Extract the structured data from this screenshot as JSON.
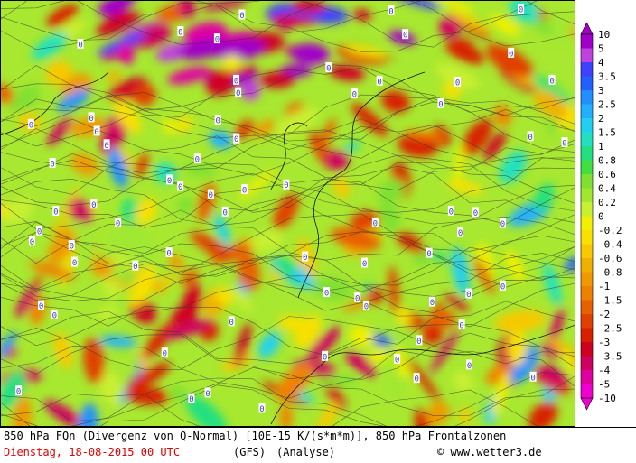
{
  "map": {
    "contour_label": "0"
  },
  "legend": {
    "labels": [
      "10",
      "5",
      "4",
      "3.5",
      "3",
      "2.5",
      "2",
      "1.5",
      "1",
      "0.8",
      "0.6",
      "0.4",
      "0.2",
      "0",
      "-0.2",
      "-0.4",
      "-0.6",
      "-0.8",
      "-1",
      "-1.5",
      "-2",
      "-2.5",
      "-3",
      "-3.5",
      "-4",
      "-5",
      "-10"
    ],
    "colors": [
      "#a000c8",
      "#c040e0",
      "#4040ff",
      "#2060ff",
      "#2090ff",
      "#20b0ff",
      "#20d0f0",
      "#20e0c0",
      "#20e080",
      "#40e040",
      "#80e030",
      "#a0e830",
      "#c8f030",
      "#f0f000",
      "#f8e000",
      "#f8c800",
      "#f0b000",
      "#f09800",
      "#f08000",
      "#e86000",
      "#e04000",
      "#d82000",
      "#d00020",
      "#d00060",
      "#e000a0",
      "#f000d0"
    ],
    "top_arrow_color": "#a000c8",
    "bottom_arrow_color": "#f000d0"
  },
  "footer": {
    "line1": "850 hPa FQn (Divergenz von Q-Normal) [10E-15 K/(s*m*m)], 850 hPa Frontalzonen",
    "date": "Dienstag, 18-08-2015  00 UTC",
    "model": "(GFS)",
    "run": "(Analyse)",
    "copyright": "© www.wetter3.de"
  }
}
